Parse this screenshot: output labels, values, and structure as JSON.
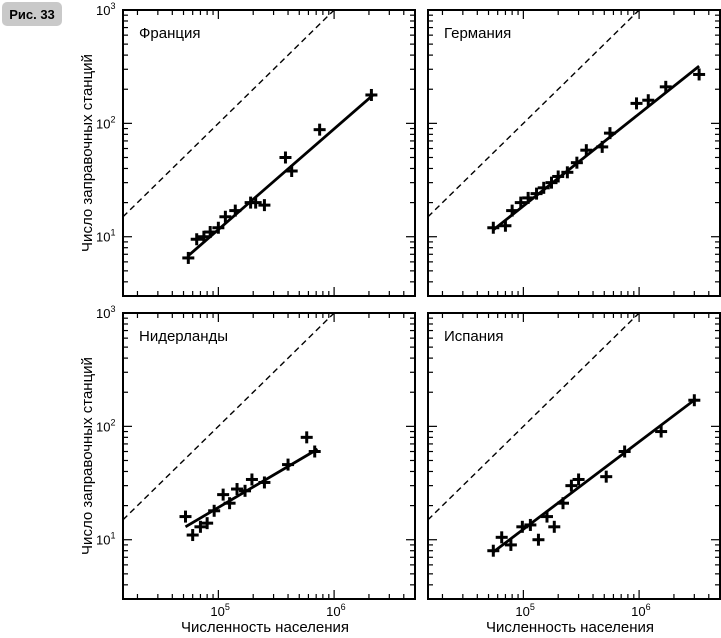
{
  "figure_label": "Рис. 33",
  "ylabel": "Число заправочных станций",
  "xlabel": "Численность населения",
  "chart_data": [
    {
      "type": "scatter",
      "title": "Франция",
      "xscale": "log",
      "yscale": "log",
      "xlim": [
        15000,
        5000000
      ],
      "ylim": [
        3,
        1000
      ],
      "x_ticks": [
        {
          "value": 100000,
          "base": "10",
          "exp": "5"
        },
        {
          "value": 1000000,
          "base": "10",
          "exp": "6"
        }
      ],
      "y_ticks": [
        {
          "value": 10,
          "base": "10",
          "exp": "1"
        },
        {
          "value": 100,
          "base": "10",
          "exp": "2"
        },
        {
          "value": 1000,
          "base": "10",
          "exp": "3"
        }
      ],
      "points": [
        [
          55000,
          6.5
        ],
        [
          65000,
          9.5
        ],
        [
          75000,
          10
        ],
        [
          85000,
          11
        ],
        [
          100000,
          12
        ],
        [
          115000,
          15
        ],
        [
          140000,
          17
        ],
        [
          190000,
          20
        ],
        [
          210000,
          20
        ],
        [
          250000,
          19
        ],
        [
          380000,
          50
        ],
        [
          430000,
          38
        ],
        [
          750000,
          88
        ],
        [
          2100000,
          178
        ]
      ],
      "fit": [
        [
          55000,
          6.8
        ],
        [
          2200000,
          180
        ]
      ],
      "reference": "y = x/1000"
    },
    {
      "type": "scatter",
      "title": "Германия",
      "xscale": "log",
      "yscale": "log",
      "xlim": [
        15000,
        5000000
      ],
      "ylim": [
        3,
        1000
      ],
      "x_ticks": [
        {
          "value": 100000,
          "base": "10",
          "exp": "5"
        },
        {
          "value": 1000000,
          "base": "10",
          "exp": "6"
        }
      ],
      "y_ticks": [
        {
          "value": 10,
          "base": "10",
          "exp": "1"
        },
        {
          "value": 100,
          "base": "10",
          "exp": "2"
        },
        {
          "value": 1000,
          "base": "10",
          "exp": "3"
        }
      ],
      "points": [
        [
          55000,
          12
        ],
        [
          70000,
          12.5
        ],
        [
          80000,
          17
        ],
        [
          95000,
          20
        ],
        [
          110000,
          22
        ],
        [
          130000,
          24
        ],
        [
          150000,
          27
        ],
        [
          175000,
          30
        ],
        [
          200000,
          34
        ],
        [
          240000,
          37
        ],
        [
          290000,
          45
        ],
        [
          350000,
          58
        ],
        [
          480000,
          62
        ],
        [
          560000,
          82
        ],
        [
          950000,
          150
        ],
        [
          1200000,
          160
        ],
        [
          1700000,
          210
        ],
        [
          3300000,
          270
        ]
      ],
      "fit": [
        [
          55000,
          11.5
        ],
        [
          3300000,
          320
        ]
      ],
      "reference": "y = x/1000"
    },
    {
      "type": "scatter",
      "title": "Нидерланды",
      "xscale": "log",
      "yscale": "log",
      "xlim": [
        15000,
        5000000
      ],
      "ylim": [
        3,
        1000
      ],
      "x_ticks": [
        {
          "value": 100000,
          "base": "10",
          "exp": "5"
        },
        {
          "value": 1000000,
          "base": "10",
          "exp": "6"
        }
      ],
      "y_ticks": [
        {
          "value": 10,
          "base": "10",
          "exp": "1"
        },
        {
          "value": 100,
          "base": "10",
          "exp": "2"
        },
        {
          "value": 1000,
          "base": "10",
          "exp": "3"
        }
      ],
      "points": [
        [
          52000,
          16
        ],
        [
          60000,
          11
        ],
        [
          70000,
          13
        ],
        [
          80000,
          14
        ],
        [
          92000,
          18
        ],
        [
          110000,
          25
        ],
        [
          125000,
          21
        ],
        [
          145000,
          28
        ],
        [
          170000,
          27
        ],
        [
          195000,
          34
        ],
        [
          250000,
          32
        ],
        [
          400000,
          46
        ],
        [
          580000,
          80
        ],
        [
          680000,
          60
        ]
      ],
      "fit": [
        [
          52000,
          13
        ],
        [
          720000,
          63
        ]
      ],
      "reference": "y = x/1000"
    },
    {
      "type": "scatter",
      "title": "Испания",
      "xscale": "log",
      "yscale": "log",
      "xlim": [
        15000,
        5000000
      ],
      "ylim": [
        3,
        1000
      ],
      "x_ticks": [
        {
          "value": 100000,
          "base": "10",
          "exp": "5"
        },
        {
          "value": 1000000,
          "base": "10",
          "exp": "6"
        }
      ],
      "y_ticks": [
        {
          "value": 10,
          "base": "10",
          "exp": "1"
        },
        {
          "value": 100,
          "base": "10",
          "exp": "2"
        },
        {
          "value": 1000,
          "base": "10",
          "exp": "3"
        }
      ],
      "points": [
        [
          55000,
          8
        ],
        [
          65000,
          10.5
        ],
        [
          78000,
          9
        ],
        [
          98000,
          13
        ],
        [
          115000,
          13.5
        ],
        [
          135000,
          10
        ],
        [
          160000,
          16
        ],
        [
          185000,
          13
        ],
        [
          220000,
          21
        ],
        [
          260000,
          30
        ],
        [
          300000,
          34
        ],
        [
          520000,
          36
        ],
        [
          750000,
          60
        ],
        [
          1550000,
          90
        ],
        [
          3000000,
          170
        ]
      ],
      "fit": [
        [
          55000,
          7.8
        ],
        [
          3100000,
          175
        ]
      ],
      "reference": "y = x/1000"
    }
  ]
}
